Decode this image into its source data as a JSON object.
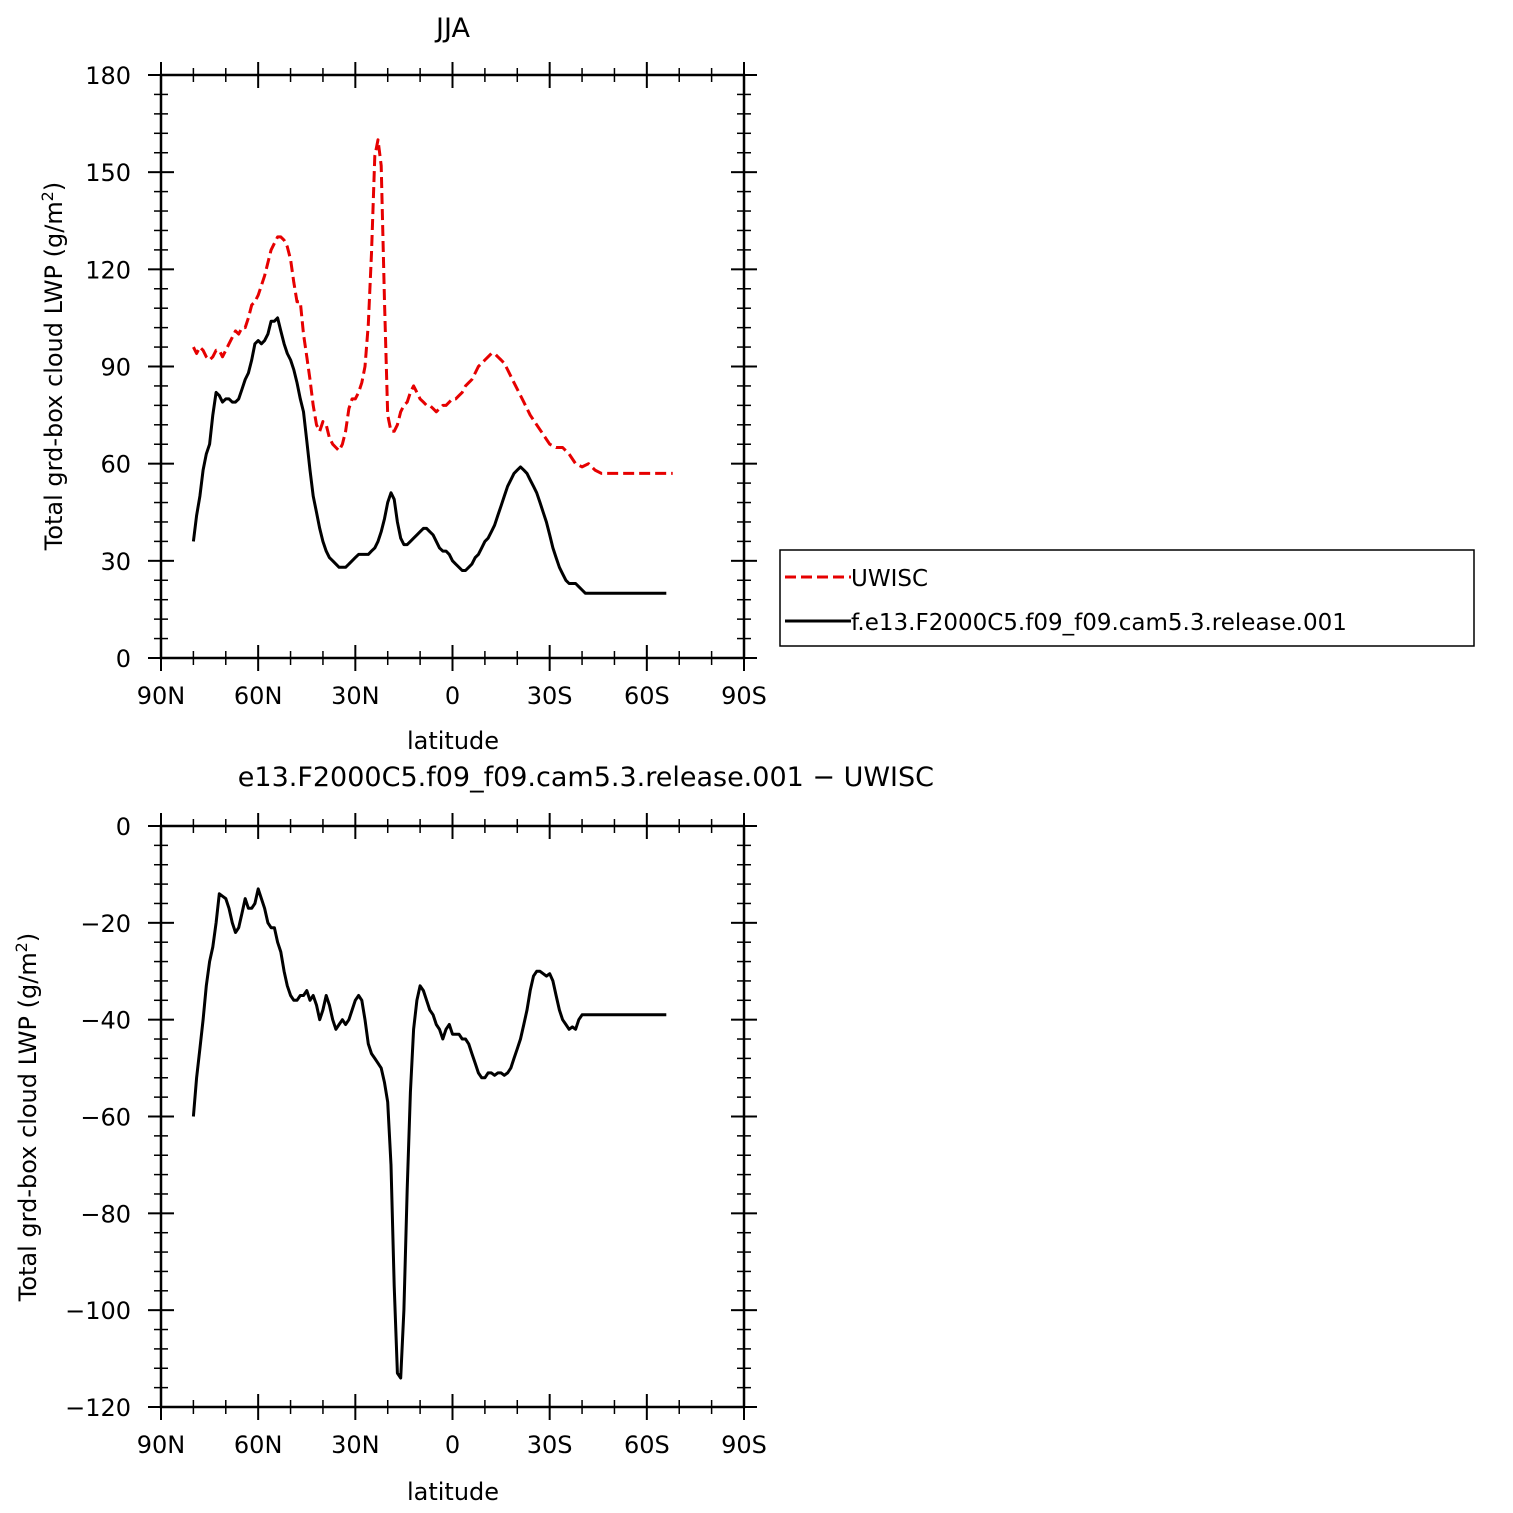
{
  "chart_data": [
    {
      "type": "line",
      "title": "JJA",
      "xlabel": "latitude",
      "ylabel": "Total grd-box cloud LWP (g/m",
      "ylabel_sup": "2",
      "ylabel_end": ")",
      "xlim": [
        90,
        -90
      ],
      "ylim": [
        0,
        180
      ],
      "x_ticks": [
        90,
        60,
        30,
        0,
        -30,
        -60,
        -90
      ],
      "x_tick_labels": [
        "90N",
        "60N",
        "30N",
        "0",
        "30S",
        "60S",
        "90S"
      ],
      "y_ticks": [
        0,
        30,
        60,
        90,
        120,
        150,
        180
      ],
      "y_tick_labels": [
        "0",
        "30",
        "60",
        "90",
        "120",
        "150",
        "180"
      ],
      "legend_position": "right",
      "series": [
        {
          "name": "UWISC",
          "color": "#e60000",
          "style": "dashed",
          "x": [
            80,
            79,
            78,
            77,
            76,
            75,
            74,
            73,
            72,
            71,
            70,
            69,
            68,
            67,
            66,
            65,
            64,
            63,
            62,
            61,
            60,
            58,
            56,
            54,
            53,
            52,
            51,
            50,
            49,
            48,
            47,
            46,
            45,
            44,
            43,
            42,
            41,
            40,
            39,
            38,
            37,
            36,
            35,
            34,
            33,
            32,
            31,
            30,
            29,
            28,
            27,
            26,
            25,
            24,
            23,
            22,
            21,
            20,
            19,
            18,
            17,
            16,
            15,
            14,
            13,
            12,
            11,
            10,
            9,
            8,
            7,
            6,
            5,
            4,
            3,
            2,
            1,
            0,
            -1,
            -2,
            -3,
            -4,
            -5,
            -6,
            -7,
            -8,
            -9,
            -10,
            -11,
            -12,
            -13,
            -14,
            -15,
            -16,
            -17,
            -18,
            -19,
            -20,
            -22,
            -24,
            -26,
            -28,
            -30,
            -32,
            -34,
            -36,
            -38,
            -40,
            -42,
            -44,
            -46,
            -48,
            -50,
            -52,
            -54,
            -56,
            -58,
            -60,
            -62,
            -64,
            -65,
            -66,
            -67,
            -68
          ],
          "y": [
            96,
            94,
            96,
            95,
            93,
            92,
            93,
            95,
            95,
            93,
            95,
            97,
            99,
            101,
            100,
            102,
            102,
            105,
            109,
            110,
            112,
            118,
            126,
            130,
            130,
            129,
            127,
            123,
            116,
            110,
            110,
            100,
            93,
            86,
            78,
            72,
            70,
            73,
            72,
            68,
            66,
            65,
            64,
            66,
            70,
            77,
            80,
            80,
            82,
            85,
            90,
            103,
            125,
            155,
            160,
            152,
            110,
            75,
            70,
            70,
            72,
            76,
            78,
            79,
            82,
            84,
            82,
            80,
            79,
            78,
            78,
            77,
            76,
            77,
            78,
            78,
            79,
            80,
            80,
            81,
            82,
            84,
            85,
            86,
            88,
            90,
            91,
            92,
            93,
            94,
            94,
            93,
            92,
            91,
            89,
            87,
            85,
            83,
            79,
            75,
            72,
            69,
            66,
            65,
            65,
            63,
            60,
            59,
            60,
            58,
            57,
            57,
            57,
            57,
            57,
            57,
            57,
            57,
            57,
            57,
            57,
            57,
            57,
            57
          ]
        },
        {
          "name": "f.e13.F2000C5.f09_f09.cam5.3.release.001",
          "color": "#000000",
          "style": "solid",
          "x": [
            80,
            79,
            78,
            77,
            76,
            75,
            74,
            73,
            72,
            71,
            70,
            69,
            68,
            67,
            66,
            65,
            64,
            63,
            62,
            61,
            60,
            59,
            58,
            57,
            56,
            55,
            54,
            53,
            52,
            51,
            50,
            49,
            48,
            47,
            46,
            45,
            44,
            43,
            42,
            41,
            40,
            39,
            38,
            37,
            36,
            35,
            34,
            33,
            32,
            31,
            30,
            29,
            28,
            27,
            26,
            25,
            24,
            23,
            22,
            21,
            20,
            19,
            18,
            17,
            16,
            15,
            14,
            13,
            12,
            11,
            10,
            9,
            8,
            7,
            6,
            5,
            4,
            3,
            2,
            1,
            0,
            -1,
            -2,
            -3,
            -4,
            -5,
            -6,
            -7,
            -8,
            -9,
            -10,
            -11,
            -12,
            -13,
            -14,
            -15,
            -16,
            -17,
            -18,
            -19,
            -20,
            -21,
            -22,
            -23,
            -24,
            -25,
            -26,
            -27,
            -28,
            -29,
            -30,
            -31,
            -32,
            -33,
            -34,
            -35,
            -36,
            -37,
            -38,
            -39,
            -40,
            -41,
            -42,
            -43,
            -44,
            -45,
            -46,
            -47,
            -48,
            -49,
            -50,
            -51,
            -52,
            -53,
            -54,
            -55,
            -56,
            -57,
            -58,
            -59,
            -60,
            -61,
            -62,
            -63,
            -64,
            -65,
            -66
          ],
          "y": [
            36,
            44,
            50,
            58,
            63,
            66,
            75,
            82,
            81,
            79,
            80,
            80,
            79,
            79,
            80,
            83,
            86,
            88,
            92,
            97,
            98,
            97,
            98,
            100,
            104,
            104,
            105,
            101,
            97,
            94,
            92,
            89,
            85,
            80,
            76,
            67,
            58,
            50,
            45,
            40,
            36,
            33,
            31,
            30,
            29,
            28,
            28,
            28,
            29,
            30,
            31,
            32,
            32,
            32,
            32,
            33,
            34,
            36,
            39,
            43,
            48,
            51,
            49,
            42,
            37,
            35,
            35,
            36,
            37,
            38,
            39,
            40,
            40,
            39,
            38,
            36,
            34,
            33,
            33,
            32,
            30,
            29,
            28,
            27,
            27,
            28,
            29,
            31,
            32,
            34,
            36,
            37,
            39,
            41,
            44,
            47,
            50,
            53,
            55,
            57,
            58,
            59,
            58,
            57,
            55,
            53,
            51,
            48,
            45,
            42,
            38,
            34,
            31,
            28,
            26,
            24,
            23,
            23,
            23,
            22,
            21,
            20,
            20,
            20,
            20,
            20,
            20,
            20,
            20,
            20,
            20,
            20,
            20,
            20,
            20,
            20,
            20,
            20,
            20,
            20,
            20,
            20,
            20,
            20,
            20,
            20,
            20
          ]
        }
      ]
    },
    {
      "type": "line",
      "title": "e13.F2000C5.f09_f09.cam5.3.release.001  −  UWISC",
      "xlabel": "latitude",
      "ylabel": "Total grd-box cloud LWP (g/m",
      "ylabel_sup": "2",
      "ylabel_end": ")",
      "xlim": [
        90,
        -90
      ],
      "ylim": [
        -120,
        0
      ],
      "x_ticks": [
        90,
        60,
        30,
        0,
        -30,
        -60,
        -90
      ],
      "x_tick_labels": [
        "90N",
        "60N",
        "30N",
        "0",
        "30S",
        "60S",
        "90S"
      ],
      "y_ticks": [
        0,
        -20,
        -40,
        -60,
        -80,
        -100,
        -120
      ],
      "y_tick_labels": [
        "0",
        "−20",
        "−40",
        "−60",
        "−80",
        "−100",
        "−120"
      ],
      "series": [
        {
          "color": "#000000",
          "style": "solid",
          "x": [
            80,
            79,
            78,
            77,
            76,
            75,
            74,
            73,
            72,
            71,
            70,
            69,
            68,
            67,
            66,
            65,
            64,
            63,
            62,
            61,
            60,
            59,
            58,
            57,
            56,
            55,
            54,
            53,
            52,
            51,
            50,
            49,
            48,
            47,
            46,
            45,
            44,
            43,
            42,
            41,
            40,
            39,
            38,
            37,
            36,
            35,
            34,
            33,
            32,
            31,
            30,
            29,
            28,
            27,
            26,
            25,
            24,
            23,
            22,
            21,
            20,
            19,
            18,
            17,
            16,
            15,
            14,
            13,
            12,
            11,
            10,
            9,
            8,
            7,
            6,
            5,
            4,
            3,
            2,
            1,
            0,
            -1,
            -2,
            -3,
            -4,
            -5,
            -6,
            -7,
            -8,
            -9,
            -10,
            -11,
            -12,
            -13,
            -14,
            -15,
            -16,
            -17,
            -18,
            -19,
            -20,
            -21,
            -22,
            -23,
            -24,
            -25,
            -26,
            -27,
            -28,
            -29,
            -30,
            -31,
            -32,
            -33,
            -34,
            -35,
            -36,
            -37,
            -38,
            -39,
            -40,
            -41,
            -42,
            -43,
            -44,
            -45,
            -46,
            -47,
            -48,
            -49,
            -50,
            -51,
            -52,
            -53,
            -54,
            -55,
            -56,
            -57,
            -58,
            -59,
            -60,
            -61,
            -62,
            -63,
            -64,
            -65,
            -66
          ],
          "y": [
            -60,
            -52,
            -46,
            -40,
            -33,
            -28,
            -25,
            -20,
            -14,
            -14.5,
            -15,
            -17,
            -20,
            -22,
            -21,
            -18,
            -15,
            -17,
            -17,
            -16,
            -13,
            -15,
            -17,
            -20,
            -21,
            -21,
            -24,
            -26,
            -30,
            -33,
            -35,
            -36,
            -36,
            -35,
            -35,
            -34,
            -36,
            -35,
            -37,
            -40,
            -38,
            -35,
            -37,
            -40,
            -42,
            -41,
            -40,
            -41,
            -40,
            -38,
            -36,
            -35,
            -36,
            -40,
            -45,
            -47,
            -48,
            -49,
            -50,
            -53,
            -57,
            -70,
            -95,
            -113,
            -114,
            -100,
            -75,
            -55,
            -42,
            -36,
            -33,
            -34,
            -36,
            -38,
            -39,
            -41,
            -42,
            -44,
            -42,
            -41,
            -43,
            -43,
            -43,
            -44,
            -44,
            -45,
            -47,
            -49,
            -51,
            -52,
            -52,
            -51,
            -51,
            -51.5,
            -51,
            -51,
            -51.5,
            -51,
            -50,
            -48,
            -46,
            -44,
            -41,
            -38,
            -34,
            -31,
            -30,
            -30,
            -30.5,
            -31,
            -30.5,
            -32,
            -35,
            -38,
            -40,
            -41,
            -42,
            -41.5,
            -42,
            -40,
            -39,
            -39,
            -39,
            -39,
            -39,
            -39,
            -39,
            -39,
            -39,
            -39,
            -39,
            -39,
            -39,
            -39,
            -39,
            -39,
            -39,
            -39,
            -39,
            -39,
            -39,
            -39,
            -39,
            -39,
            -39,
            -39,
            -39
          ]
        }
      ]
    }
  ]
}
